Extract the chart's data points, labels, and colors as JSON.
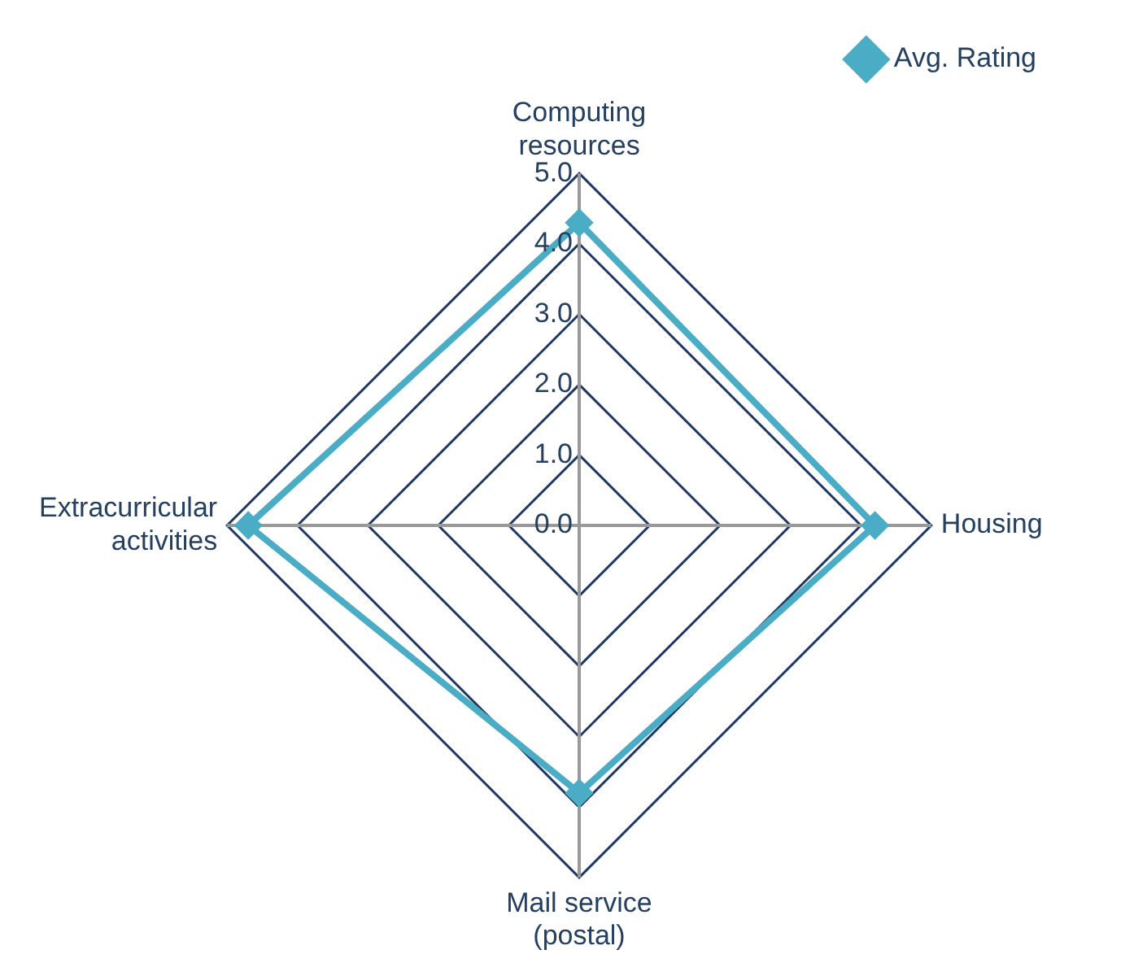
{
  "chart_data": {
    "type": "radar",
    "categories": [
      "Computing resources",
      "Housing",
      "Mail service (postal)",
      "Extracurricular activities"
    ],
    "series": [
      {
        "name": "Avg. Rating",
        "color": "#4bacc6",
        "values": [
          4.3,
          4.2,
          3.8,
          4.7
        ]
      }
    ],
    "ylim": [
      0,
      5
    ],
    "yticks": [
      {
        "value": 0,
        "label": "0.0"
      },
      {
        "value": 1,
        "label": "1.0"
      },
      {
        "value": 2,
        "label": "2.0"
      },
      {
        "value": 3,
        "label": "3.0"
      },
      {
        "value": 4,
        "label": "4.0"
      },
      {
        "value": 5,
        "label": "5.0"
      }
    ],
    "grid": true,
    "legend": "top right",
    "marker": "diamond",
    "line_style": "solid"
  }
}
